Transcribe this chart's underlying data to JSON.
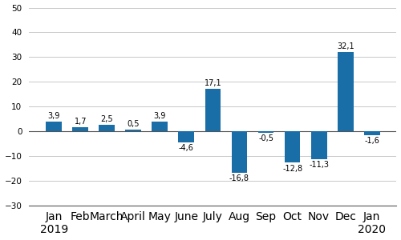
{
  "categories": [
    "Jan\n2019",
    "Feb",
    "March",
    "April",
    "May",
    "June",
    "July",
    "Aug",
    "Sep",
    "Oct",
    "Nov",
    "Dec",
    "Jan\n2020"
  ],
  "values": [
    3.9,
    1.7,
    2.5,
    0.5,
    3.9,
    -4.6,
    17.1,
    -16.8,
    -0.5,
    -12.8,
    -11.3,
    32.1,
    -1.6
  ],
  "labels": [
    "3,9",
    "1,7",
    "2,5",
    "0,5",
    "3,9",
    "-4,6",
    "17,1",
    "-16,8",
    "-0,5",
    "-12,8",
    "-11,3",
    "32,1",
    "-1,6"
  ],
  "bar_color": "#1a6ea8",
  "ylim": [
    -30,
    50
  ],
  "yticks": [
    -30,
    -20,
    -10,
    0,
    10,
    20,
    30,
    40,
    50
  ],
  "background_color": "#ffffff",
  "grid_color": "#c8c8c8",
  "label_fontsize": 7.0,
  "tick_fontsize": 7.5,
  "bar_width": 0.6
}
